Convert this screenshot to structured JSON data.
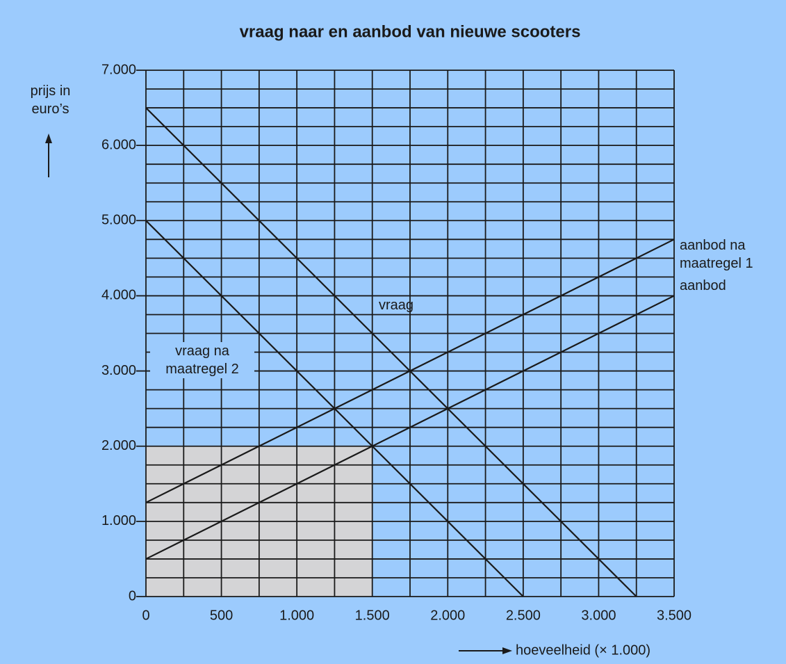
{
  "chart_data": {
    "type": "line",
    "title": "vraag naar en aanbod van nieuwe scooters",
    "ylabel": "prijs in euro’s",
    "xlabel": "hoeveelheid (× 1.000)",
    "xlim": [
      0,
      3500
    ],
    "ylim": [
      0,
      7000
    ],
    "xticks": [
      0,
      500,
      {
        "value": 1000,
        "label": "1.000"
      },
      {
        "value": 1500,
        "label": "1.500"
      },
      {
        "value": 2000,
        "label": "2.000"
      },
      {
        "value": 2500,
        "label": "2.500"
      },
      {
        "value": 3000,
        "label": "3.000"
      },
      {
        "value": 3500,
        "label": "3.500"
      }
    ],
    "yticks": [
      0,
      {
        "value": 1000,
        "label": "1.000"
      },
      {
        "value": 2000,
        "label": "2.000"
      },
      {
        "value": 3000,
        "label": "3.000"
      },
      {
        "value": 4000,
        "label": "4.000"
      },
      {
        "value": 5000,
        "label": "5.000"
      },
      {
        "value": 6000,
        "label": "6.000"
      },
      {
        "value": 7000,
        "label": "7.000"
      }
    ],
    "grid": true,
    "series": [
      {
        "name": "vraag",
        "color": "#1a1a1a",
        "x": [
          0,
          3250
        ],
        "values": [
          6500,
          0
        ]
      },
      {
        "name": "vraag na maatregel 2",
        "color": "#1a1a1a",
        "x": [
          0,
          2500
        ],
        "values": [
          5000,
          0
        ]
      },
      {
        "name": "aanbod na maatregel 1",
        "color": "#1a1a1a",
        "x": [
          0,
          3500
        ],
        "values": [
          1250,
          4750
        ]
      },
      {
        "name": "aanbod",
        "color": "#1a1a1a",
        "x": [
          0,
          3500
        ],
        "values": [
          500,
          4000
        ]
      }
    ],
    "shaded_area": {
      "x": [
        0,
        1500
      ],
      "values": [
        0,
        2000
      ],
      "color": "#d4d4d6"
    }
  }
}
